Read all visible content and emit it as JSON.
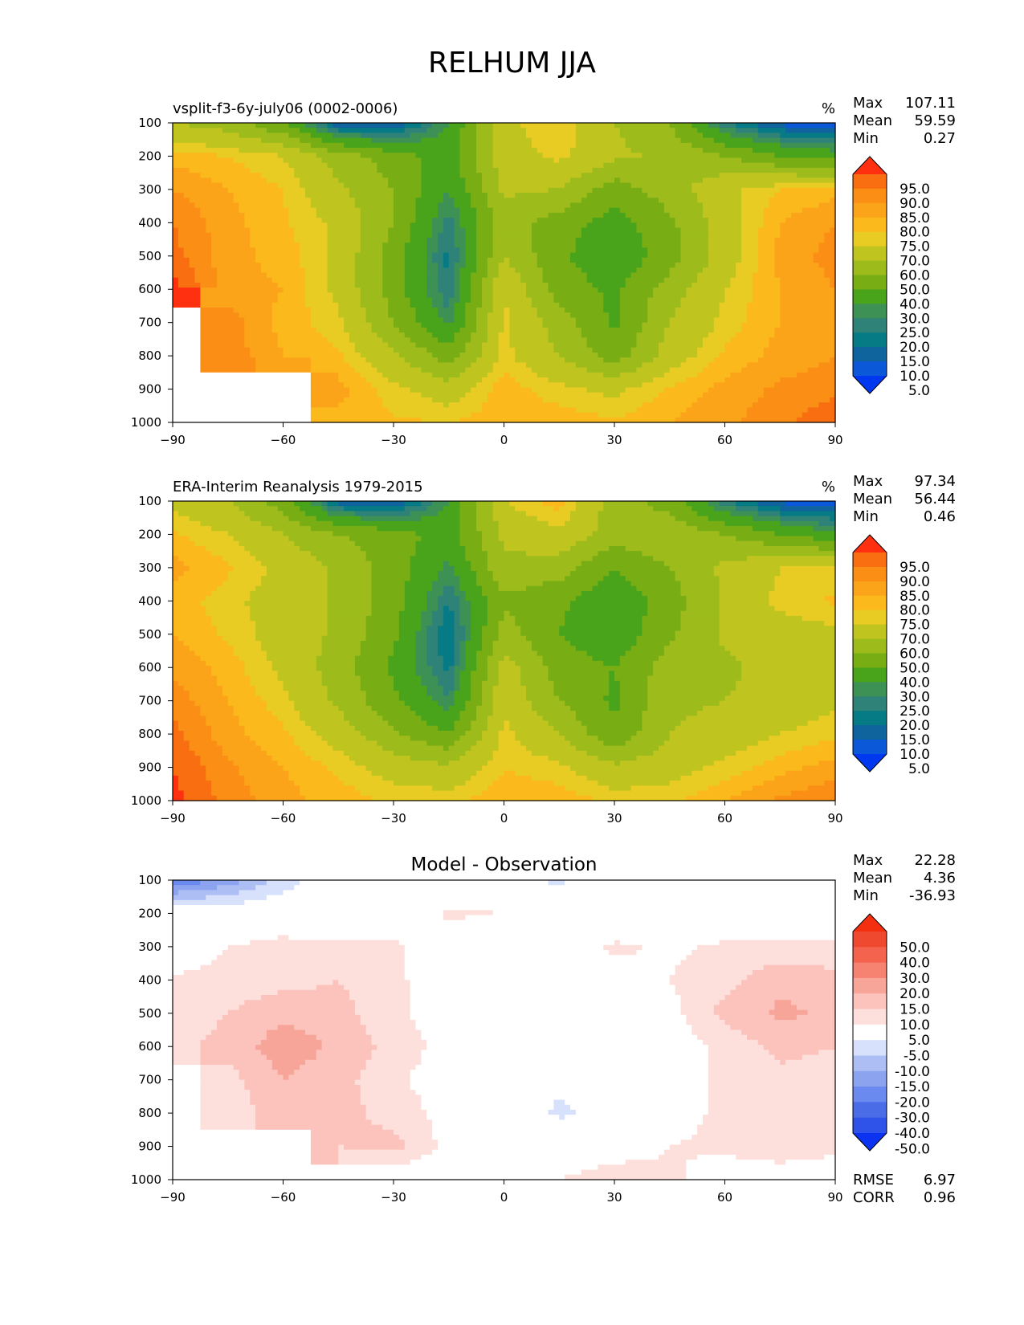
{
  "figure": {
    "title": "RELHUM JJA"
  },
  "chart_data": [
    {
      "type": "heatmap",
      "left_title": "vsplit-f3-6y-july06 (0002-0006)",
      "center_title": "",
      "units": "%",
      "stats": {
        "max_label": "Max",
        "max": "107.11",
        "mean_label": "Mean",
        "mean": "59.59",
        "min_label": "Min",
        "min": "0.27"
      },
      "xlim": [
        -90,
        90
      ],
      "ylim": [
        1000,
        100
      ],
      "xticks": [
        "−90",
        "−60",
        "−30",
        "0",
        "30",
        "60",
        "90"
      ],
      "yticks": [
        "100",
        "200",
        "300",
        "400",
        "500",
        "600",
        "700",
        "800",
        "900",
        "1000"
      ],
      "grid": false,
      "x": [
        -90,
        -75,
        -60,
        -45,
        -30,
        -15,
        0,
        15,
        30,
        45,
        60,
        75,
        90
      ],
      "y": [
        100,
        200,
        300,
        400,
        500,
        600,
        700,
        800,
        900,
        1000
      ],
      "values": [
        [
          60,
          55,
          40,
          10,
          8,
          30,
          68,
          75,
          60,
          50,
          20,
          8,
          5
        ],
        [
          78,
          75,
          70,
          55,
          45,
          35,
          66,
          72,
          62,
          58,
          50,
          40,
          35
        ],
        [
          85,
          80,
          75,
          62,
          50,
          30,
          62,
          60,
          45,
          55,
          68,
          75,
          78
        ],
        [
          90,
          82,
          76,
          68,
          50,
          22,
          55,
          45,
          35,
          48,
          65,
          80,
          85
        ],
        [
          92,
          82,
          78,
          68,
          45,
          18,
          60,
          42,
          32,
          45,
          65,
          82,
          87
        ],
        [
          98,
          82,
          80,
          68,
          45,
          20,
          70,
          45,
          38,
          55,
          70,
          80,
          85
        ],
        [
          null,
          88,
          78,
          72,
          50,
          28,
          72,
          55,
          38,
          60,
          72,
          80,
          82
        ],
        [
          null,
          88,
          80,
          76,
          62,
          45,
          72,
          60,
          45,
          65,
          76,
          82,
          85
        ],
        [
          null,
          null,
          null,
          82,
          72,
          65,
          78,
          72,
          68,
          76,
          82,
          86,
          88
        ],
        [
          null,
          null,
          null,
          78,
          76,
          75,
          78,
          78,
          76,
          80,
          84,
          88,
          95
        ]
      ]
    },
    {
      "type": "heatmap",
      "left_title": "ERA-Interim Reanalysis 1979-2015",
      "center_title": "",
      "units": "%",
      "stats": {
        "max_label": "Max",
        "max": "97.34",
        "mean_label": "Mean",
        "mean": "56.44",
        "min_label": "Min",
        "min": "0.46"
      },
      "xlim": [
        -90,
        90
      ],
      "ylim": [
        1000,
        100
      ],
      "xticks": [
        "−90",
        "−60",
        "−30",
        "0",
        "30",
        "60",
        "90"
      ],
      "yticks": [
        "100",
        "200",
        "300",
        "400",
        "500",
        "600",
        "700",
        "800",
        "900",
        "1000"
      ],
      "grid": false,
      "x": [
        -90,
        -75,
        -60,
        -45,
        -30,
        -15,
        0,
        15,
        30,
        45,
        60,
        75,
        90
      ],
      "y": [
        100,
        200,
        300,
        400,
        500,
        600,
        700,
        800,
        900,
        1000
      ],
      "values": [
        [
          68,
          60,
          45,
          12,
          8,
          30,
          70,
          78,
          55,
          45,
          20,
          8,
          5
        ],
        [
          76,
          70,
          60,
          50,
          45,
          35,
          62,
          68,
          55,
          58,
          50,
          40,
          32
        ],
        [
          82,
          76,
          68,
          58,
          45,
          28,
          58,
          55,
          40,
          50,
          62,
          70,
          72
        ],
        [
          78,
          72,
          66,
          58,
          45,
          20,
          48,
          42,
          32,
          45,
          62,
          72,
          76
        ],
        [
          80,
          74,
          66,
          58,
          42,
          14,
          55,
          40,
          32,
          48,
          62,
          66,
          68
        ],
        [
          84,
          78,
          68,
          55,
          38,
          18,
          65,
          45,
          40,
          55,
          58,
          64,
          66
        ],
        [
          88,
          80,
          72,
          58,
          42,
          25,
          68,
          50,
          38,
          58,
          60,
          64,
          68
        ],
        [
          92,
          82,
          76,
          66,
          52,
          40,
          72,
          60,
          42,
          60,
          64,
          70,
          74
        ],
        [
          95,
          86,
          80,
          74,
          66,
          62,
          75,
          72,
          62,
          66,
          72,
          78,
          82
        ],
        [
          97,
          88,
          82,
          78,
          74,
          74,
          78,
          78,
          74,
          74,
          80,
          86,
          90
        ]
      ]
    },
    {
      "type": "heatmap",
      "left_title": "",
      "center_title": "Model - Observation",
      "units": "",
      "stats": {
        "max_label": "Max",
        "max": "22.28",
        "mean_label": "Mean",
        "mean": "4.36",
        "min_label": "Min",
        "min": "-36.93"
      },
      "extra_stats": {
        "rmse_label": "RMSE",
        "rmse": "6.97",
        "corr_label": "CORR",
        "corr": "0.96"
      },
      "xlim": [
        -90,
        90
      ],
      "ylim": [
        1000,
        100
      ],
      "xticks": [
        "−90",
        "−60",
        "−30",
        "0",
        "30",
        "60",
        "90"
      ],
      "yticks": [
        "100",
        "200",
        "300",
        "400",
        "500",
        "600",
        "700",
        "800",
        "900",
        "1000"
      ],
      "grid": false,
      "x": [
        -90,
        -75,
        -60,
        -45,
        -30,
        -15,
        0,
        15,
        30,
        45,
        60,
        75,
        90
      ],
      "y": [
        100,
        200,
        300,
        400,
        500,
        600,
        700,
        800,
        900,
        1000
      ],
      "values": [
        [
          -25,
          -18,
          -8,
          0,
          0,
          0,
          -3,
          -6,
          -2,
          0,
          0,
          0,
          0
        ],
        [
          0,
          0,
          0,
          0,
          0,
          6,
          5,
          0,
          0,
          0,
          0,
          0,
          0
        ],
        [
          0,
          5,
          7,
          6,
          6,
          0,
          0,
          0,
          6,
          4,
          6,
          6,
          6
        ],
        [
          6,
          7,
          8,
          10,
          6,
          2,
          -5,
          0,
          3,
          5,
          8,
          14,
          12
        ],
        [
          7,
          10,
          14,
          12,
          6,
          2,
          0,
          0,
          2,
          3,
          12,
          16,
          14
        ],
        [
          8,
          12,
          18,
          14,
          8,
          3,
          0,
          0,
          0,
          2,
          6,
          12,
          10
        ],
        [
          null,
          8,
          15,
          12,
          6,
          2,
          0,
          -4,
          0,
          2,
          6,
          8,
          6
        ],
        [
          null,
          6,
          14,
          12,
          8,
          3,
          0,
          -6,
          -3,
          3,
          6,
          8,
          6
        ],
        [
          null,
          null,
          null,
          10,
          12,
          3,
          0,
          0,
          2,
          5,
          6,
          8,
          6
        ],
        [
          null,
          null,
          null,
          0,
          0,
          0,
          0,
          5,
          8,
          6,
          2,
          2,
          2
        ]
      ]
    }
  ],
  "colorbars": {
    "rh": {
      "labels": [
        "95.0",
        "90.0",
        "85.0",
        "80.0",
        "75.0",
        "70.0",
        "60.0",
        "50.0",
        "40.0",
        "30.0",
        "25.0",
        "20.0",
        "15.0",
        "10.0",
        "5.0"
      ],
      "levels": [
        5,
        10,
        15,
        20,
        25,
        30,
        40,
        50,
        60,
        70,
        75,
        80,
        85,
        90,
        95
      ],
      "colors": [
        "#0038f0",
        "#0b58d8",
        "#10649e",
        "#077b85",
        "#2f8278",
        "#3d9155",
        "#4aa41b",
        "#78ae14",
        "#9dbc1c",
        "#bfc41f",
        "#e8cc24",
        "#fbb91c",
        "#fca419",
        "#fb8f16",
        "#f86e10",
        "#ff3010"
      ]
    },
    "diff": {
      "labels": [
        "50.0",
        "40.0",
        "30.0",
        "20.0",
        "15.0",
        "10.0",
        "5.0",
        "-5.0",
        "-10.0",
        "-15.0",
        "-20.0",
        "-30.0",
        "-40.0",
        "-50.0"
      ],
      "levels": [
        -50,
        -40,
        -30,
        -20,
        -15,
        -10,
        -5,
        5,
        10,
        15,
        20,
        30,
        40,
        50
      ],
      "colors": [
        "#0a32f0",
        "#2f52e8",
        "#4a6ce6",
        "#6b8af0",
        "#8ca4f0",
        "#adbef5",
        "#d7e1fb",
        "#ffffff",
        "#fde0dc",
        "#fbc3bc",
        "#f8a599",
        "#f68272",
        "#f3634e",
        "#ef4a30",
        "#f42f10"
      ]
    }
  }
}
